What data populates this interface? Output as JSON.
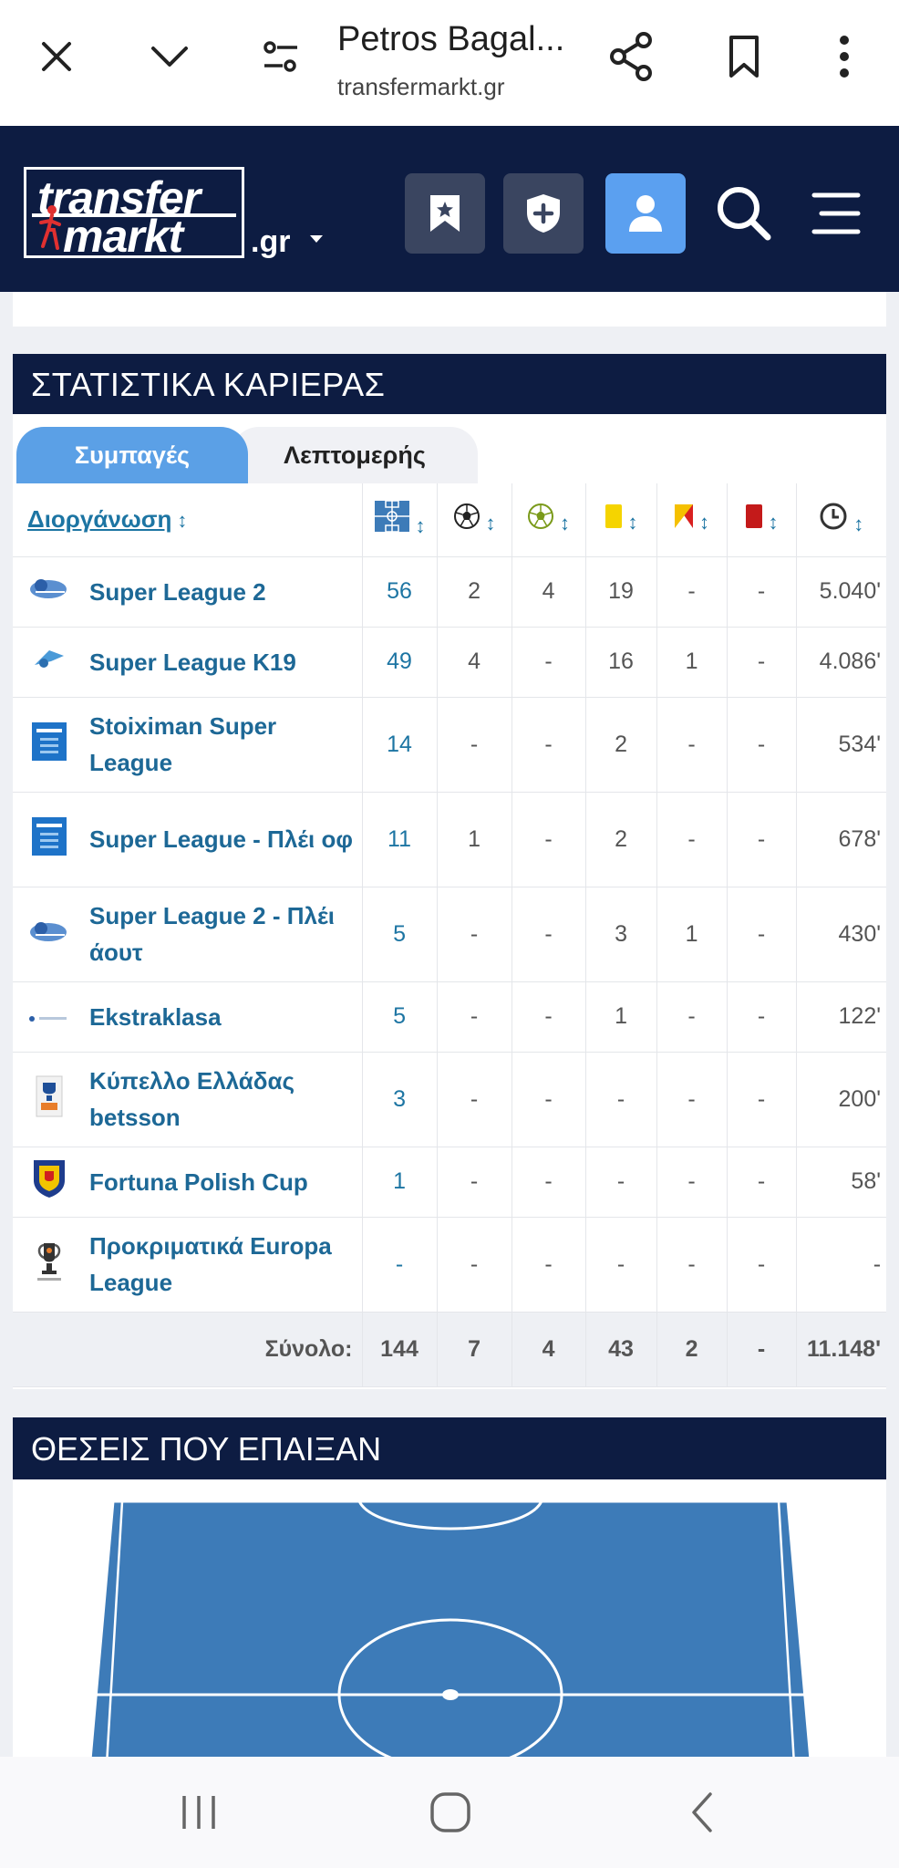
{
  "browser": {
    "title": "Petros Bagal...",
    "url": "transfermarkt.gr"
  },
  "site": {
    "logo_line1": "transfer",
    "logo_line2": "markt",
    "domain": ".gr"
  },
  "career_stats": {
    "title": "ΣΤΑΤΙΣΤΙΚΑ ΚΑΡΙΕΡΑΣ",
    "tabs": [
      {
        "label": "Συμπαγές",
        "active": true
      },
      {
        "label": "Λεπτομερής",
        "active": false
      }
    ],
    "header": {
      "competition": "Διοργάνωση",
      "sort_glyph": "↕"
    },
    "rows": [
      {
        "logo": "super-league-2-logo",
        "name": "Super League 2",
        "apps": "56",
        "goals": "2",
        "assists": "4",
        "yellow": "19",
        "second_yellow": "-",
        "red": "-",
        "minutes": "5.040'"
      },
      {
        "logo": "super-league-k19-logo",
        "name": "Super League K19",
        "apps": "49",
        "goals": "4",
        "assists": "-",
        "yellow": "16",
        "second_yellow": "1",
        "red": "-",
        "minutes": "4.086'"
      },
      {
        "logo": "stoiximan-super-league-logo",
        "name": "Stoiximan Super League",
        "apps": "14",
        "goals": "-",
        "assists": "-",
        "yellow": "2",
        "second_yellow": "-",
        "red": "-",
        "minutes": "534'"
      },
      {
        "logo": "super-league-playoff-logo",
        "name": "Super League - Πλέι οφ",
        "apps": "11",
        "goals": "1",
        "assists": "-",
        "yellow": "2",
        "second_yellow": "-",
        "red": "-",
        "minutes": "678'"
      },
      {
        "logo": "super-league-2-playout-logo",
        "name": "Super League 2 - Πλέι άουτ",
        "apps": "5",
        "goals": "-",
        "assists": "-",
        "yellow": "3",
        "second_yellow": "1",
        "red": "-",
        "minutes": "430'"
      },
      {
        "logo": "ekstraklasa-logo",
        "name": "Ekstraklasa",
        "apps": "5",
        "goals": "-",
        "assists": "-",
        "yellow": "1",
        "second_yellow": "-",
        "red": "-",
        "minutes": "122'"
      },
      {
        "logo": "greek-cup-logo",
        "name": "Κύπελλο Ελλάδας betsson",
        "apps": "3",
        "goals": "-",
        "assists": "-",
        "yellow": "-",
        "second_yellow": "-",
        "red": "-",
        "minutes": "200'"
      },
      {
        "logo": "polish-cup-logo",
        "name": "Fortuna Polish Cup",
        "apps": "1",
        "goals": "-",
        "assists": "-",
        "yellow": "-",
        "second_yellow": "-",
        "red": "-",
        "minutes": "58'"
      },
      {
        "logo": "europa-league-qualifying-logo",
        "name": "Προκριματικά Europa League",
        "apps": "-",
        "goals": "-",
        "assists": "-",
        "yellow": "-",
        "second_yellow": "-",
        "red": "-",
        "minutes": "-"
      }
    ],
    "total": {
      "label": "Σύνολο:",
      "apps": "144",
      "goals": "7",
      "assists": "4",
      "yellow": "43",
      "second_yellow": "2",
      "red": "-",
      "minutes": "11.148'"
    }
  },
  "positions": {
    "title": "ΘΕΣΕΙΣ ΠΟΥ ΕΠΑΙΞΑΝ"
  },
  "colors": {
    "navy": "#0d1c42",
    "tab_blue": "#5ba0e6",
    "link_blue": "#1d75a3",
    "pitch_blue": "#3d7bb8"
  }
}
